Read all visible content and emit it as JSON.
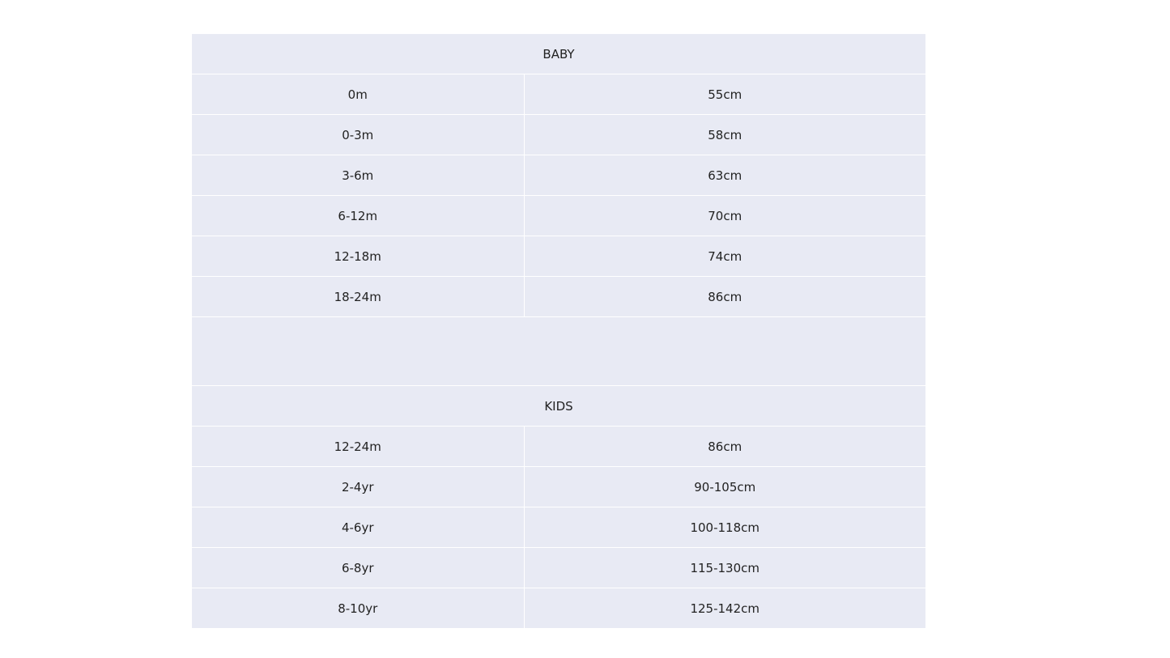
{
  "colors": {
    "cell_background": "#e8eaf4",
    "text": "#222222",
    "grid": "#ffffff"
  },
  "baby": {
    "title": "BABY",
    "rows": [
      {
        "age": "0m",
        "height": "55cm"
      },
      {
        "age": "0-3m",
        "height": "58cm"
      },
      {
        "age": "3-6m",
        "height": "63cm"
      },
      {
        "age": "6-12m",
        "height": "70cm"
      },
      {
        "age": "12-18m",
        "height": "74cm"
      },
      {
        "age": "18-24m",
        "height": "86cm"
      }
    ]
  },
  "kids": {
    "title": "KIDS",
    "rows": [
      {
        "age": "12-24m",
        "height": "86cm"
      },
      {
        "age": "2-4yr",
        "height": "90-105cm"
      },
      {
        "age": "4-6yr",
        "height": "100-118cm"
      },
      {
        "age": "6-8yr",
        "height": "115-130cm"
      },
      {
        "age": "8-10yr",
        "height": "125-142cm"
      }
    ]
  }
}
